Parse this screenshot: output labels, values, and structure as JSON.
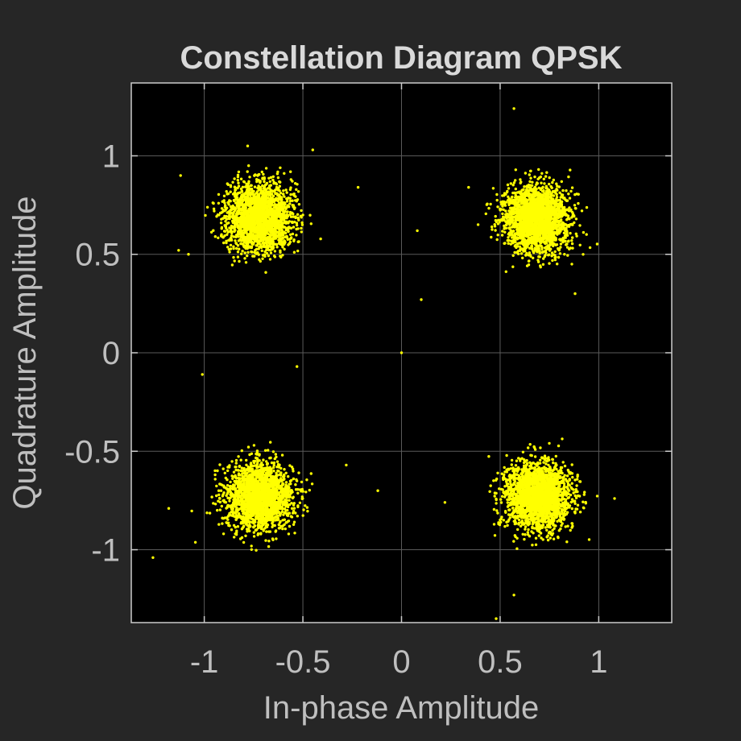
{
  "chart_data": {
    "type": "scatter",
    "title": "Constellation Diagram QPSK",
    "xlabel": "In-phase Amplitude",
    "ylabel": "Quadrature Amplitude",
    "xlim": [
      -1.37,
      1.37
    ],
    "ylim": [
      -1.37,
      1.37
    ],
    "xticks": [
      -1,
      -0.5,
      0,
      0.5,
      1
    ],
    "xtick_labels": [
      "-1",
      "-0.5",
      "0",
      "0.5",
      "1"
    ],
    "yticks": [
      -1,
      -0.5,
      0,
      0.5,
      1
    ],
    "ytick_labels": [
      "-1",
      "-0.5",
      "0",
      "0.5",
      "1"
    ],
    "grid": true,
    "legend": "none",
    "colors": {
      "figure_background": "#262626",
      "axes_background": "#000000",
      "axes_edge": "#cccccc",
      "grid": "#5a5a5a",
      "text": "#bfbfbf",
      "title_text": "#d9d9d9",
      "marker": "#ffff00"
    },
    "clusters": [
      {
        "symbol": "-1-1i",
        "center": [
          -0.72,
          -0.73
        ],
        "spread_std": 0.083
      },
      {
        "symbol": "-1+1i",
        "center": [
          -0.72,
          0.69
        ],
        "spread_std": 0.083
      },
      {
        "symbol": "+1-1i",
        "center": [
          0.69,
          -0.73
        ],
        "spread_std": 0.083
      },
      {
        "symbol": "+1+1i",
        "center": [
          0.68,
          0.68
        ],
        "spread_std": 0.083
      }
    ],
    "outliers": [
      [
        0.57,
        1.24
      ],
      [
        -0.45,
        1.03
      ],
      [
        -0.78,
        1.05
      ],
      [
        -0.22,
        0.84
      ],
      [
        -1.12,
        0.9
      ],
      [
        0.08,
        0.62
      ],
      [
        0.1,
        0.27
      ],
      [
        0.0,
        0.0
      ],
      [
        -1.01,
        -0.11
      ],
      [
        -0.53,
        -0.07
      ],
      [
        -0.28,
        -0.57
      ],
      [
        -0.12,
        -0.7
      ],
      [
        0.22,
        -0.76
      ],
      [
        -1.26,
        -1.04
      ],
      [
        -1.18,
        -0.79
      ],
      [
        0.57,
        -1.23
      ],
      [
        0.48,
        -1.35
      ],
      [
        0.88,
        0.3
      ],
      [
        -1.13,
        0.52
      ],
      [
        0.34,
        0.84
      ],
      [
        -1.08,
        0.5
      ],
      [
        1.08,
        -0.74
      ]
    ]
  }
}
